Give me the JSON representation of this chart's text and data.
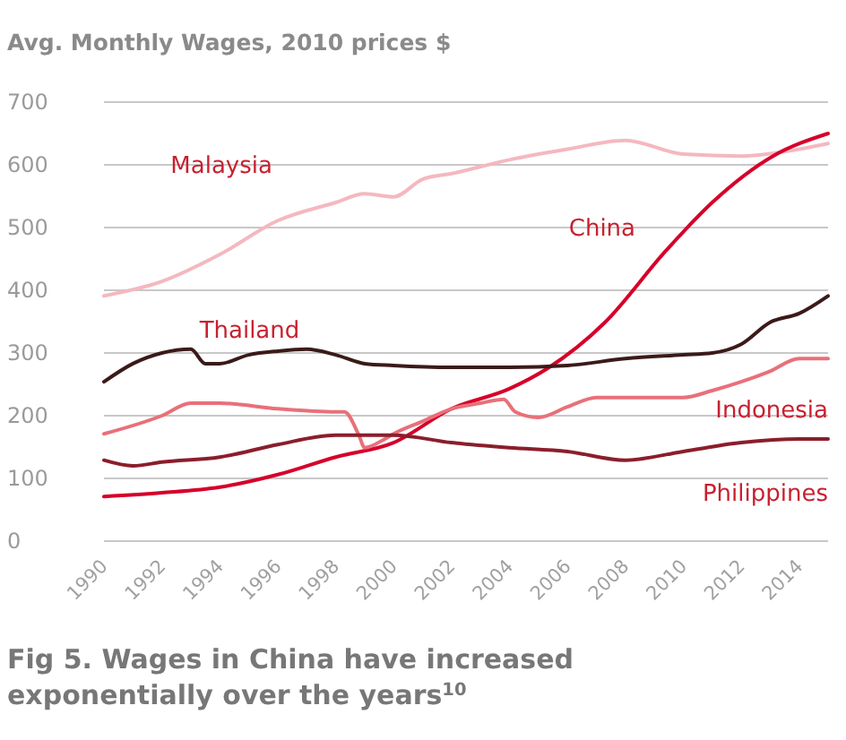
{
  "chart_data": {
    "type": "line",
    "title": "Avg. Monthly Wages, 2010 prices $",
    "annotations": [
      "Fig 5. Wages in China have increased exponentially over the years$^{10}$"
    ],
    "xlim": [
      1990,
      2015
    ],
    "xticks": [
      1990,
      1992,
      1994,
      1996,
      1998,
      2000,
      2002,
      2004,
      2006,
      2008,
      2010,
      2012,
      2014
    ],
    "ylim": [
      0,
      700
    ],
    "yticks": [
      0,
      100,
      200,
      300,
      400,
      500,
      600,
      700
    ],
    "grid": "y",
    "marker": "none",
    "line_style": "solid",
    "series": [
      {
        "name": "Malaysia",
        "color": "#f4b8c0",
        "x": [
          1990,
          1992,
          1994,
          1996,
          1998,
          1999,
          2000,
          2001,
          2002,
          2004,
          2006,
          2008,
          2010,
          2012,
          2014,
          2015
        ],
        "values": [
          391,
          414,
          457,
          511,
          540,
          554,
          549,
          577,
          586,
          608,
          625,
          639,
          617,
          614,
          625,
          634
        ]
      },
      {
        "name": "China",
        "color": "#d6002a",
        "x": [
          1990,
          1992,
          1994,
          1996,
          1998,
          2000,
          2002,
          2004,
          2005.3,
          2007.3,
          2009.4,
          2011,
          2013.1,
          2015
        ],
        "values": [
          71,
          77,
          86,
          106,
          134,
          157,
          211,
          243,
          275,
          349,
          463,
          540,
          614,
          650
        ]
      },
      {
        "name": "Thailand",
        "color": "#3b1a1a",
        "x": [
          1990,
          1991,
          1992,
          1993,
          1993.5,
          1994,
          1995,
          1996,
          1997,
          1998,
          1999,
          2000,
          2002,
          2004,
          2006,
          2008,
          2010,
          2011,
          2012,
          2013,
          2014,
          2015
        ],
        "values": [
          254,
          283,
          300,
          306,
          283,
          283,
          297,
          303,
          306,
          297,
          283,
          280,
          277,
          277,
          280,
          291,
          297,
          300,
          314,
          349,
          363,
          391
        ]
      },
      {
        "name": "Indonesia",
        "color": "#e8707a",
        "x": [
          1990,
          1992,
          1993,
          1994,
          1996,
          1998,
          1998.3,
          1998.8,
          1999,
          1999.7,
          2000,
          2001,
          2002,
          2003,
          2003.8,
          2004.2,
          2005,
          2006,
          2007,
          2008,
          2010,
          2011,
          2012,
          2013,
          2014,
          2015
        ],
        "values": [
          171,
          200,
          220,
          220,
          211,
          206,
          206,
          169,
          149,
          163,
          171,
          191,
          211,
          220,
          226,
          206,
          197,
          214,
          229,
          229,
          229,
          240,
          254,
          271,
          291,
          291
        ]
      },
      {
        "name": "Philippines",
        "color": "#8b1e2c",
        "x": [
          1990,
          1991,
          1992,
          1994,
          1996,
          1998,
          2000,
          2002,
          2004,
          2006,
          2008,
          2010,
          2012,
          2014,
          2015
        ],
        "values": [
          129,
          120,
          126,
          134,
          154,
          169,
          169,
          157,
          149,
          143,
          129,
          143,
          157,
          163,
          163
        ]
      }
    ]
  }
}
